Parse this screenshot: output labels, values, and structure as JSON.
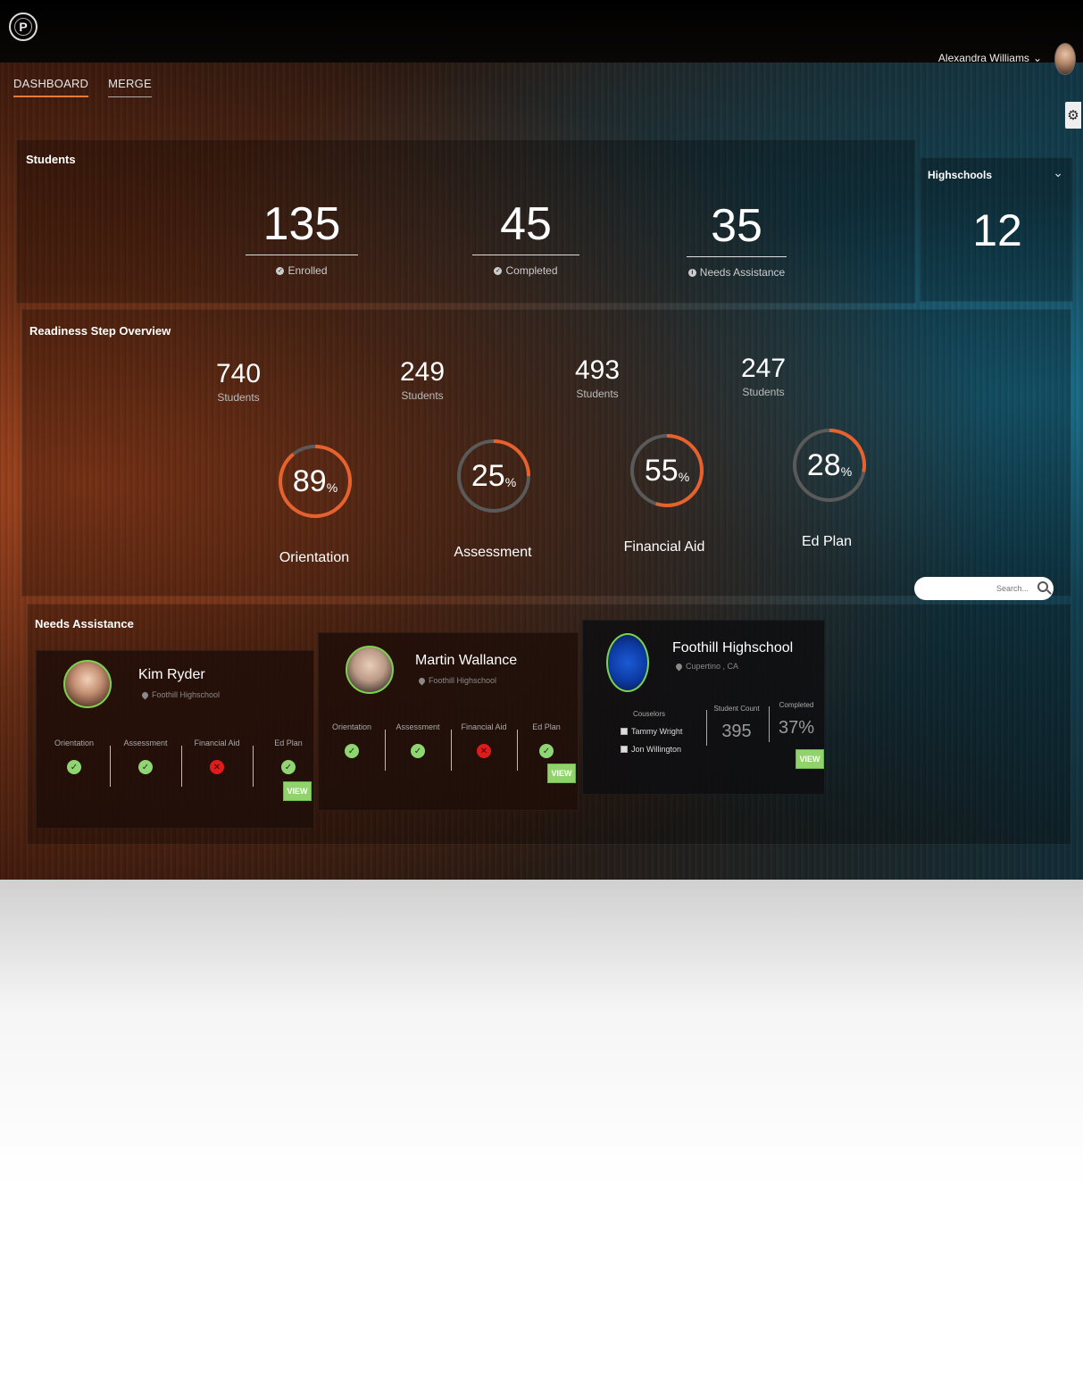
{
  "header": {
    "logo_letter": "P",
    "user_name": "Alexandra Williams",
    "user_caret": "⌄",
    "nav": [
      {
        "label": "DASHBOARD",
        "active": true
      },
      {
        "label": "MERGE",
        "active": false
      }
    ],
    "settings_icon": "gear-icon"
  },
  "students": {
    "title": "Students",
    "stats": [
      {
        "value": "135",
        "label": "Enrolled",
        "icon": "check-circle-icon"
      },
      {
        "value": "45",
        "label": "Completed",
        "icon": "check-circle-icon"
      },
      {
        "value": "35",
        "label": "Needs Assistance",
        "icon": "info-circle-icon"
      }
    ]
  },
  "highschools": {
    "title": "Highschools",
    "value": "12",
    "caret": "⌄"
  },
  "readiness": {
    "title": "Readiness Step Overview",
    "steps": [
      {
        "count": "740",
        "count_label": "Students",
        "percent": "89",
        "percent_value": 89,
        "unit": "%",
        "name": "Orientation"
      },
      {
        "count": "249",
        "count_label": "Students",
        "percent": "25",
        "percent_value": 25,
        "unit": "%",
        "name": "Assessment"
      },
      {
        "count": "493",
        "count_label": "Students",
        "percent": "55",
        "percent_value": 55,
        "unit": "%",
        "name": "Financial Aid"
      },
      {
        "count": "247",
        "count_label": "Students",
        "percent": "28",
        "percent_value": 28,
        "unit": "%",
        "name": "Ed Plan"
      }
    ],
    "ring_color": "#e8612c",
    "ring_track_color": "#5a5a5a"
  },
  "search": {
    "placeholder": "Search..."
  },
  "needs_assistance": {
    "title": "Needs Assistance",
    "students": [
      {
        "name": "Kim Ryder",
        "school": "Foothill Highschool",
        "steps": [
          {
            "label": "Orientation",
            "ok": true
          },
          {
            "label": "Assessment",
            "ok": true
          },
          {
            "label": "Financial Aid",
            "ok": false
          },
          {
            "label": "Ed Plan",
            "ok": true
          }
        ],
        "view": "VIEW"
      },
      {
        "name": "Martin Wallance",
        "school": "Foothill Highschool",
        "steps": [
          {
            "label": "Orientation",
            "ok": true
          },
          {
            "label": "Assessment",
            "ok": true
          },
          {
            "label": "Financial Aid",
            "ok": false
          },
          {
            "label": "Ed Plan",
            "ok": true
          }
        ],
        "view": "VIEW"
      }
    ],
    "school": {
      "name": "Foothill Highschool",
      "location": "Cupertino , CA",
      "counselors_label": "Couselors",
      "counselors": [
        "Tammy Wright",
        "Jon Willington"
      ],
      "student_count_label": "Student Count",
      "student_count": "395",
      "completed_label": "Completed",
      "completed": "37%",
      "view": "VIEW"
    }
  },
  "colors": {
    "accent": "#e77a35",
    "success": "#8fd672",
    "error": "#e01b1b",
    "view_button": "#91d36b"
  }
}
